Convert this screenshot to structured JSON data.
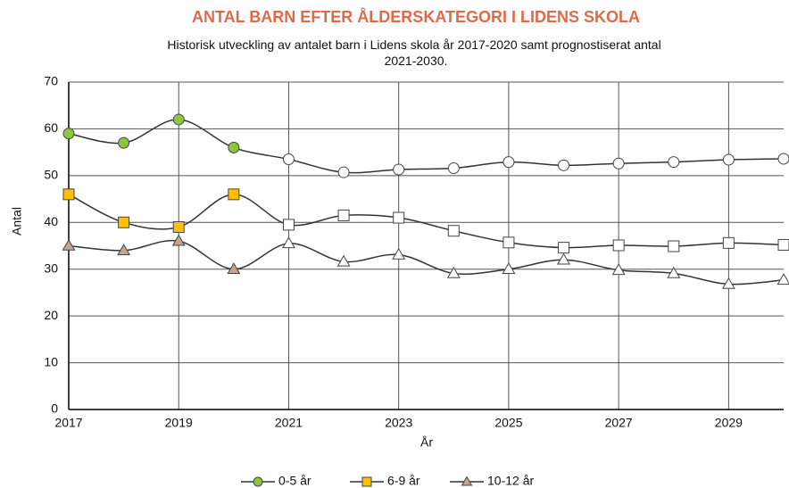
{
  "chart_data": {
    "type": "line",
    "title": "ANTAL BARN EFTER ÅLDERSKATEGORI I LIDENS SKOLA",
    "subtitle": "Historisk utveckling av antalet barn i Lidens skola år 2017-2020 samt prognostiserat antal 2021-2030.",
    "x_label": "År",
    "y_label": "Antal",
    "x": [
      2017,
      2018,
      2019,
      2020,
      2021,
      2022,
      2023,
      2024,
      2025,
      2026,
      2027,
      2028,
      2029,
      2030
    ],
    "forecast_start": 2021,
    "forecast_color": "#ffffff",
    "line_color": "#333333",
    "series": [
      {
        "name": "0-5 år",
        "color": "#8cc63f",
        "marker": "circle",
        "values": [
          59,
          57,
          62,
          56,
          53.5,
          50.7,
          51.3,
          51.6,
          52.9,
          52.2,
          52.6,
          52.9,
          53.4,
          53.6
        ]
      },
      {
        "name": "6-9 år",
        "color": "#ffc000",
        "marker": "square",
        "values": [
          46,
          40,
          39,
          46,
          39.5,
          41.5,
          41,
          38.2,
          35.7,
          34.6,
          35.1,
          34.9,
          35.6,
          35.2
        ]
      },
      {
        "name": "10-12 år",
        "color": "#c4a48a",
        "marker": "triangle",
        "values": [
          35,
          34,
          36,
          30,
          35.5,
          31.6,
          33.1,
          29.1,
          30,
          32,
          29.8,
          29.1,
          26.8,
          27.7
        ]
      }
    ],
    "xlim": [
      2017,
      2030
    ],
    "xticks": [
      2017,
      2019,
      2021,
      2023,
      2025,
      2027,
      2029
    ],
    "ylim": [
      0,
      70
    ],
    "yticks": [
      0,
      10,
      20,
      30,
      40,
      50,
      60,
      70
    ],
    "grid": true,
    "legend": "bottom"
  }
}
